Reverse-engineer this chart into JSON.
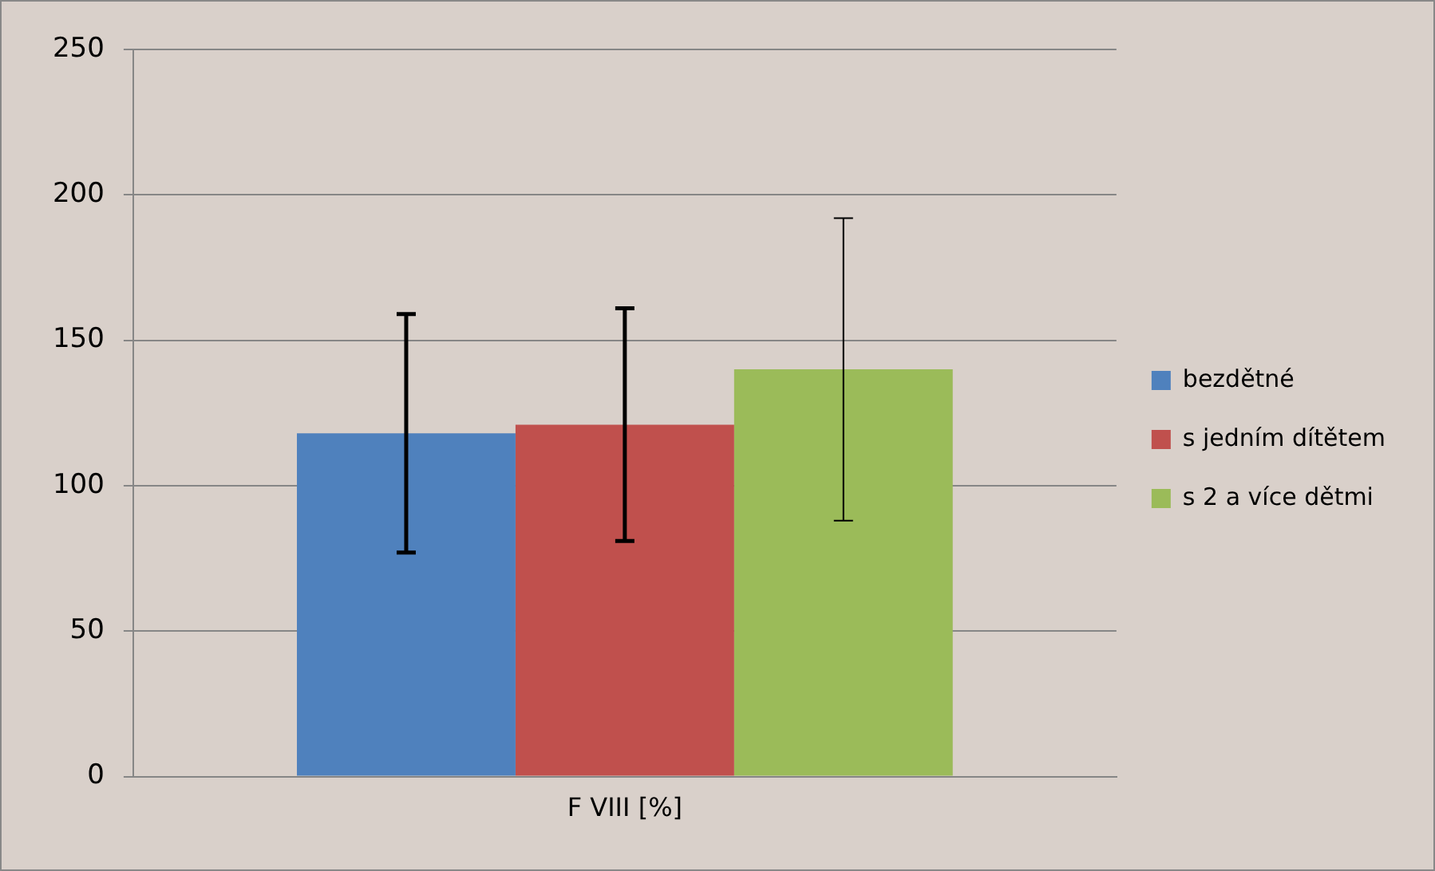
{
  "chart_data": {
    "type": "bar",
    "categories": [
      "F VIII [%]"
    ],
    "series": [
      {
        "name": "bezdětné",
        "color": "#4f81bd",
        "values": [
          118
        ],
        "errors": [
          41
        ]
      },
      {
        "name": "s jedním dítětem",
        "color": "#c0504d",
        "values": [
          121
        ],
        "errors": [
          40
        ]
      },
      {
        "name": "s 2 a více dětmi",
        "color": "#9bbb59",
        "values": [
          140
        ],
        "errors": [
          52
        ]
      }
    ],
    "ylim": [
      0,
      250
    ],
    "yticks": [
      0,
      50,
      100,
      150,
      200,
      250
    ],
    "grid": "y",
    "legend": "right"
  }
}
